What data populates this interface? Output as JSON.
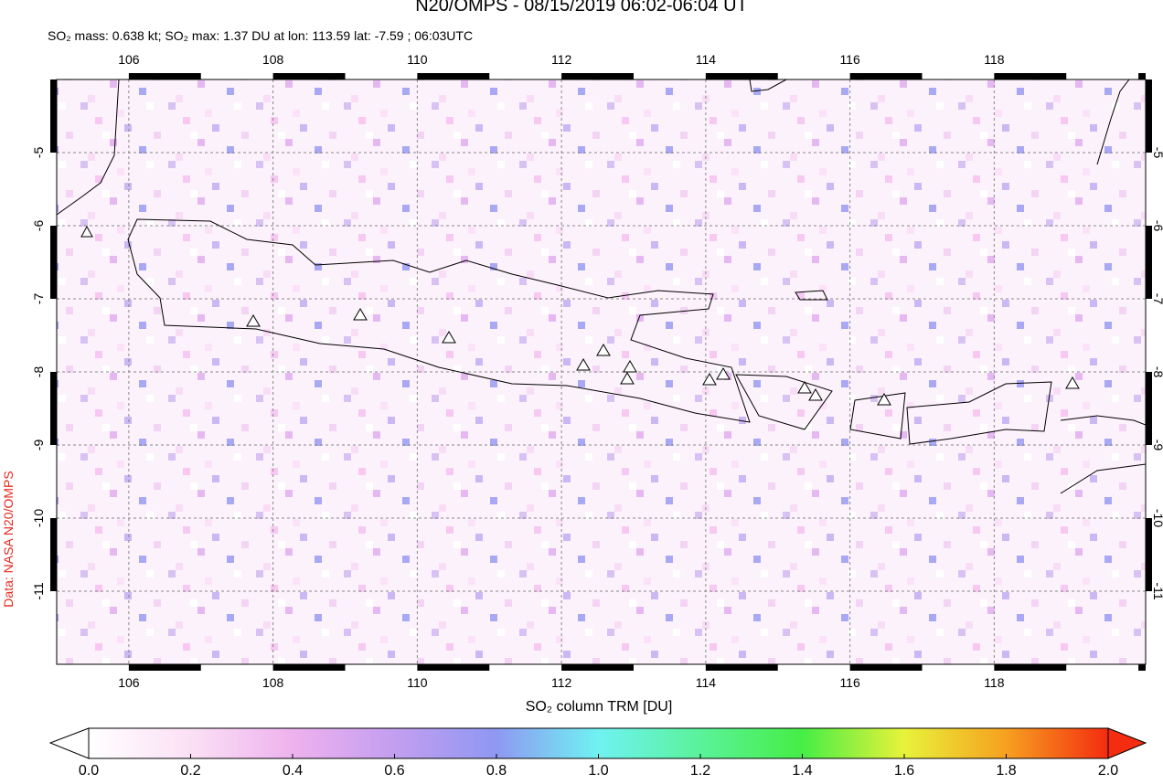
{
  "title": "N20/OMPS - 08/15/2019 06:02-06:04 UT",
  "subtitle": "SO₂ mass: 0.638 kt; SO₂ max: 1.37 DU at lon: 113.59 lat: -7.59 ; 06:03UTC",
  "credit": "Data: NASA N20/OMPS",
  "map": {
    "xlim": [
      105,
      120.1
    ],
    "ylim": [
      -4,
      -12
    ],
    "xticks": [
      106,
      108,
      110,
      112,
      114,
      116,
      118
    ],
    "yticks": [
      -5,
      -6,
      -7,
      -8,
      -9,
      -10,
      -11
    ],
    "grid": true
  },
  "colorbar": {
    "label": "SO₂ column TRM [DU]",
    "lim": [
      0,
      2
    ],
    "ticks": [
      {
        "value": 0,
        "label": "0.0"
      },
      {
        "value": 0.2,
        "label": "0.2"
      },
      {
        "value": 0.4,
        "label": "0.4"
      },
      {
        "value": 0.6,
        "label": "0.6"
      },
      {
        "value": 0.8,
        "label": "0.8"
      },
      {
        "value": 1,
        "label": "1.0"
      },
      {
        "value": 1.2,
        "label": "1.2"
      },
      {
        "value": 1.4,
        "label": "1.4"
      },
      {
        "value": 1.6,
        "label": "1.6"
      },
      {
        "value": 1.8,
        "label": "1.8"
      },
      {
        "value": 2,
        "label": "2.0"
      }
    ]
  }
}
